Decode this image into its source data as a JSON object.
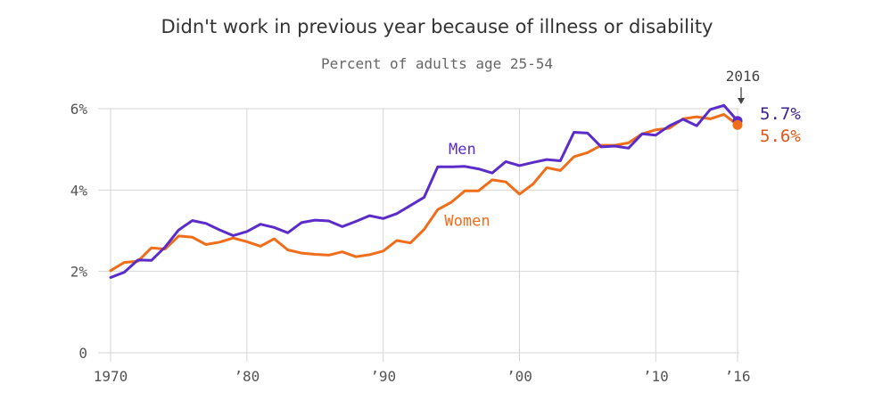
{
  "chart_data": {
    "type": "line",
    "title": "Didn't work in previous year because of illness or disability",
    "subtitle": "Percent of adults age 25-54",
    "x": [
      1970,
      1971,
      1972,
      1973,
      1974,
      1975,
      1976,
      1977,
      1978,
      1979,
      1980,
      1981,
      1982,
      1983,
      1984,
      1985,
      1986,
      1987,
      1988,
      1989,
      1990,
      1991,
      1992,
      1993,
      1994,
      1995,
      1996,
      1997,
      1998,
      1999,
      2000,
      2001,
      2002,
      2003,
      2004,
      2005,
      2006,
      2007,
      2008,
      2009,
      2010,
      2011,
      2012,
      2013,
      2014,
      2015,
      2016
    ],
    "series": [
      {
        "name": "Men",
        "color": "#5b2cc9",
        "values": [
          1.85,
          1.98,
          2.28,
          2.27,
          2.6,
          3.02,
          3.25,
          3.18,
          3.02,
          2.88,
          2.98,
          3.16,
          3.08,
          2.95,
          3.2,
          3.26,
          3.24,
          3.1,
          3.23,
          3.37,
          3.3,
          3.42,
          3.62,
          3.82,
          4.57,
          4.57,
          4.58,
          4.52,
          4.42,
          4.7,
          4.6,
          4.68,
          4.75,
          4.72,
          5.42,
          5.4,
          5.06,
          5.08,
          5.03,
          5.38,
          5.35,
          5.58,
          5.74,
          5.58,
          5.98,
          6.08,
          5.7
        ]
      },
      {
        "name": "Women",
        "color": "#f06d1a",
        "values": [
          2.02,
          2.22,
          2.25,
          2.58,
          2.55,
          2.87,
          2.84,
          2.66,
          2.72,
          2.82,
          2.73,
          2.62,
          2.8,
          2.53,
          2.45,
          2.42,
          2.4,
          2.48,
          2.36,
          2.41,
          2.5,
          2.76,
          2.7,
          3.03,
          3.52,
          3.7,
          3.98,
          3.98,
          4.25,
          4.2,
          3.9,
          4.15,
          4.55,
          4.48,
          4.82,
          4.92,
          5.1,
          5.1,
          5.16,
          5.38,
          5.48,
          5.52,
          5.75,
          5.8,
          5.75,
          5.86,
          5.6
        ]
      }
    ],
    "ylim": [
      0,
      6
    ],
    "y_ticks": [
      {
        "value": 0,
        "label": "0"
      },
      {
        "value": 2,
        "label": "2%"
      },
      {
        "value": 4,
        "label": "4%"
      },
      {
        "value": 6,
        "label": "6%"
      }
    ],
    "x_ticks": [
      {
        "value": 1970,
        "label": "1970"
      },
      {
        "value": 1980,
        "label": "’80"
      },
      {
        "value": 1990,
        "label": "’90"
      },
      {
        "value": 2000,
        "label": "’00"
      },
      {
        "value": 2010,
        "label": "’10"
      },
      {
        "value": 2016,
        "label": "’16"
      }
    ],
    "annotation": "2016",
    "series_labels": [
      {
        "series": "Men",
        "text": "Men",
        "x": 1994.8,
        "y": 4.88
      },
      {
        "series": "Women",
        "text": "Women",
        "x": 1994.5,
        "y": 3.12
      }
    ],
    "end_labels": [
      {
        "series": "Men",
        "text": "5.7%"
      },
      {
        "series": "Women",
        "text": "5.6%"
      }
    ],
    "grid": true
  }
}
